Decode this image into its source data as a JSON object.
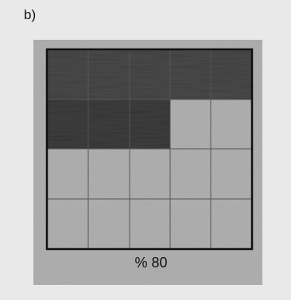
{
  "label": "b)",
  "caption": "% 80"
}
